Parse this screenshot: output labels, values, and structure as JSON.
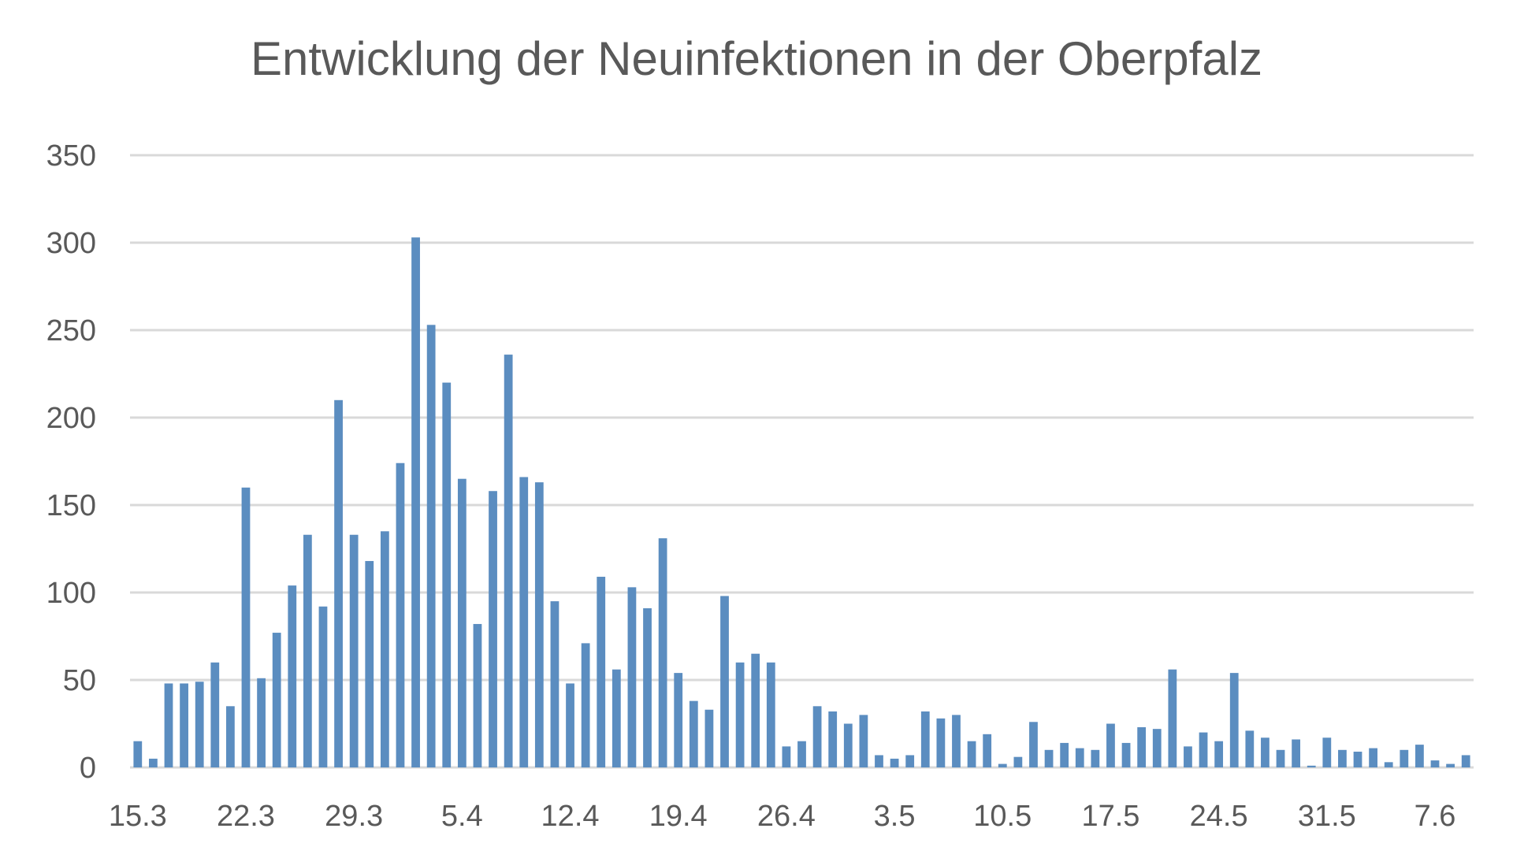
{
  "chart_data": {
    "type": "bar",
    "title": "Entwicklung der Neuinfektionen in der Oberpfalz",
    "xlabel": "",
    "ylabel": "",
    "ylim": [
      0,
      350
    ],
    "yticks": [
      0,
      50,
      100,
      150,
      200,
      250,
      300,
      350
    ],
    "grid": true,
    "legend": "none",
    "bar_color": "#5B8DC0",
    "x_tick_labels": [
      "15.3",
      "22.3",
      "29.3",
      "5.4",
      "12.4",
      "19.4",
      "26.4",
      "3.5",
      "10.5",
      "17.5",
      "24.5",
      "31.5",
      "7.6"
    ],
    "x_tick_every": 7,
    "values": [
      15,
      5,
      48,
      48,
      49,
      60,
      35,
      160,
      51,
      77,
      104,
      133,
      92,
      210,
      133,
      118,
      135,
      174,
      303,
      253,
      220,
      165,
      82,
      158,
      236,
      166,
      163,
      95,
      48,
      71,
      109,
      56,
      103,
      91,
      131,
      54,
      38,
      33,
      98,
      60,
      65,
      60,
      12,
      15,
      35,
      32,
      25,
      30,
      7,
      5,
      7,
      32,
      28,
      30,
      15,
      19,
      2,
      6,
      26,
      10,
      14,
      11,
      10,
      25,
      14,
      23,
      22,
      56,
      12,
      20,
      15,
      54,
      21,
      17,
      10,
      16,
      1,
      17,
      10,
      9,
      11,
      3,
      10,
      13,
      4,
      2,
      7
    ]
  }
}
